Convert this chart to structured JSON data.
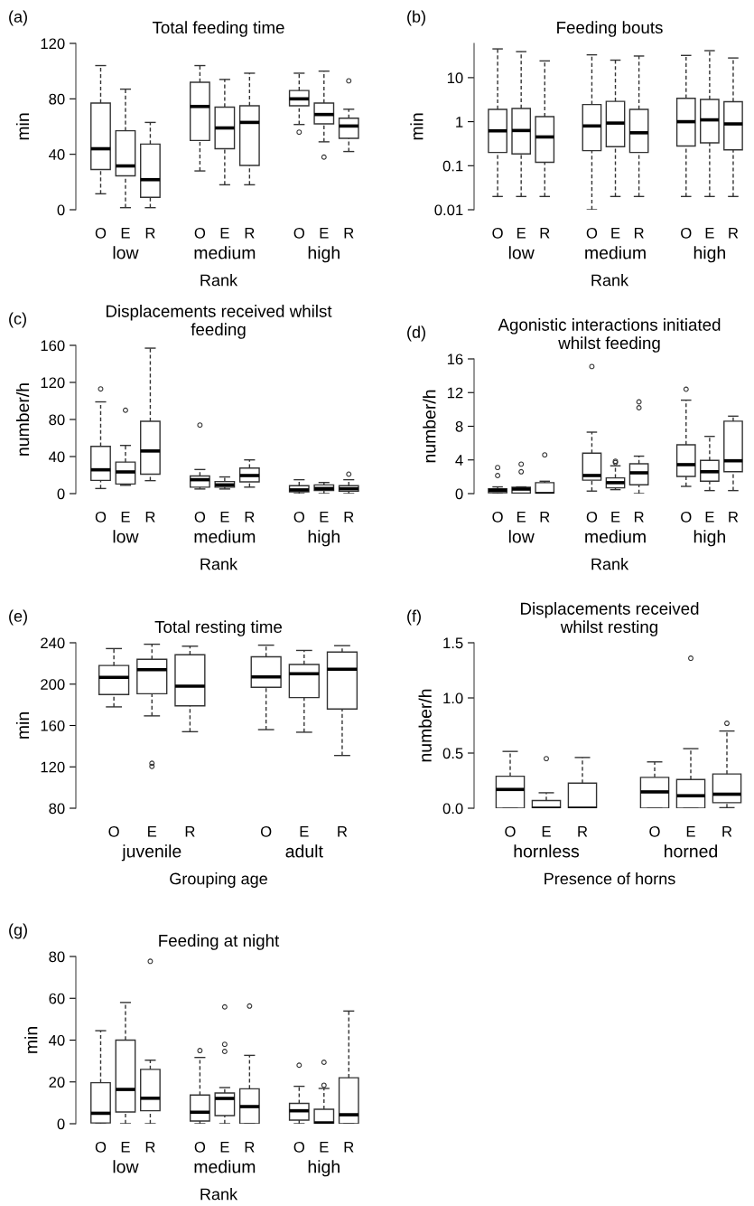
{
  "chart_data": [
    {
      "type": "box",
      "title": "Total feeding time",
      "xlabel": "Rank",
      "ylabel": "min",
      "annotations": [
        "(a)",
        "low",
        "medium",
        "high"
      ],
      "categories": [
        "O",
        "E",
        "R",
        null,
        "O",
        "E",
        "R",
        null,
        "O",
        "E",
        "R"
      ],
      "ylim": [
        0,
        120
      ],
      "yticks": [
        0,
        40,
        80,
        120
      ],
      "boxes": [
        {
          "low": 11.5,
          "q1": 29,
          "median": 44,
          "q3": 77,
          "high": 104
        },
        {
          "low": 1.5,
          "q1": 24.5,
          "median": 31.6,
          "q3": 57,
          "high": 87
        },
        {
          "low": 1.5,
          "q1": 9,
          "median": 21.7,
          "q3": 47.4,
          "high": 63
        },
        null,
        {
          "low": 28,
          "q1": 50,
          "median": 74.5,
          "q3": 92,
          "high": 104
        },
        {
          "low": 18,
          "q1": 44,
          "median": 59,
          "q3": 74,
          "high": 94
        },
        {
          "low": 18,
          "q1": 32,
          "median": 63,
          "q3": 75,
          "high": 98.5
        },
        null,
        {
          "low": 61.5,
          "q1": 75,
          "median": 80,
          "q3": 86,
          "high": 98.5,
          "outliers": [
            56
          ]
        },
        {
          "low": 49,
          "q1": 62,
          "median": 68.7,
          "q3": 77,
          "high": 100,
          "outliers": [
            38
          ]
        },
        {
          "low": 42,
          "q1": 51.5,
          "median": 60.4,
          "q3": 66,
          "high": 72.5,
          "outliers": [
            93
          ]
        }
      ]
    },
    {
      "type": "box",
      "title": "Feeding bouts",
      "xlabel": "Rank",
      "ylabel": "min",
      "annotations": [
        "(b)",
        "low",
        "medium",
        "high"
      ],
      "log": true,
      "categories": [
        "O",
        "E",
        "R",
        null,
        "O",
        "E",
        "R",
        null,
        "O",
        "E",
        "R"
      ],
      "ylim": [
        0.01,
        60
      ],
      "yticks": [
        0.01,
        0.1,
        1,
        10
      ],
      "boxes": [
        {
          "low": 0.02,
          "q1": 0.2,
          "median": 0.62,
          "q3": 1.9,
          "high": 45
        },
        {
          "low": 0.02,
          "q1": 0.185,
          "median": 0.63,
          "q3": 2.0,
          "high": 39
        },
        {
          "low": 0.02,
          "q1": 0.12,
          "median": 0.45,
          "q3": 1.3,
          "high": 24
        },
        null,
        {
          "low": 0.01,
          "q1": 0.22,
          "median": 0.8,
          "q3": 2.45,
          "high": 33
        },
        {
          "low": 0.02,
          "q1": 0.27,
          "median": 0.93,
          "q3": 2.9,
          "high": 25
        },
        {
          "low": 0.02,
          "q1": 0.2,
          "median": 0.56,
          "q3": 1.9,
          "high": 31
        },
        null,
        {
          "low": 0.02,
          "q1": 0.28,
          "median": 1.0,
          "q3": 3.4,
          "high": 32
        },
        {
          "low": 0.02,
          "q1": 0.33,
          "median": 1.1,
          "q3": 3.2,
          "high": 41
        },
        {
          "low": 0.02,
          "q1": 0.23,
          "median": 0.89,
          "q3": 2.85,
          "high": 28
        }
      ]
    },
    {
      "type": "box",
      "title": "Displacements received whilst\nfeeding",
      "xlabel": "Rank",
      "ylabel": "number/h",
      "annotations": [
        "(c)",
        "low",
        "medium",
        "high"
      ],
      "categories": [
        "O",
        "E",
        "R",
        null,
        "O",
        "E",
        "R",
        null,
        "O",
        "E",
        "R"
      ],
      "ylim": [
        0,
        160
      ],
      "yticks": [
        0,
        40,
        80,
        120,
        160
      ],
      "boxes": [
        {
          "low": 5.5,
          "q1": 14.3,
          "median": 25.7,
          "q3": 51,
          "high": 99,
          "outliers": [
            113
          ]
        },
        {
          "low": 9,
          "q1": 10.4,
          "median": 23.4,
          "q3": 34,
          "high": 52,
          "outliers": [
            90
          ]
        },
        {
          "low": 14,
          "q1": 21,
          "median": 46,
          "q3": 78,
          "high": 157
        },
        null,
        {
          "low": 5,
          "q1": 7,
          "median": 15,
          "q3": 19,
          "high": 26,
          "outliers": [
            74
          ]
        },
        {
          "low": 5,
          "q1": 7,
          "median": 9.4,
          "q3": 13,
          "high": 18
        },
        {
          "low": 7,
          "q1": 12.7,
          "median": 19.5,
          "q3": 27.6,
          "high": 36.4
        },
        null,
        {
          "low": 0,
          "q1": 2,
          "median": 4,
          "q3": 8.5,
          "high": 15
        },
        {
          "low": 0,
          "q1": 3.3,
          "median": 5.5,
          "q3": 9.4,
          "high": 12
        },
        {
          "low": 0,
          "q1": 2.6,
          "median": 5.2,
          "q3": 8.5,
          "high": 15,
          "outliers": [
            21
          ]
        }
      ]
    },
    {
      "type": "box",
      "title": "Agonistic interactions initiated\nwhilst feeding",
      "xlabel": "Rank",
      "ylabel": "number/h",
      "annotations": [
        "(d)",
        "low",
        "medium",
        "high"
      ],
      "categories": [
        "O",
        "E",
        "R",
        null,
        "O",
        "E",
        "R",
        null,
        "O",
        "E",
        "R"
      ],
      "ylim": [
        0,
        16
      ],
      "yticks": [
        0,
        4,
        8,
        12,
        16
      ],
      "boxes": [
        {
          "low": 0,
          "q1": 0.1,
          "median": 0.4,
          "q3": 0.57,
          "high": 0.8,
          "outliers": [
            2.15,
            3.1
          ]
        },
        {
          "low": 0,
          "q1": 0.07,
          "median": 0.54,
          "q3": 0.75,
          "high": 0.8,
          "outliers": [
            2.6,
            3.5
          ]
        },
        {
          "low": 0,
          "q1": 0,
          "median": 0,
          "q3": 1.3,
          "high": 1.47,
          "outliers": [
            4.6
          ]
        },
        null,
        {
          "low": 0.3,
          "q1": 1.6,
          "median": 2.15,
          "q3": 4.8,
          "high": 7.3,
          "outliers": [
            15.1
          ]
        },
        {
          "low": 0.47,
          "q1": 0.68,
          "median": 1.3,
          "q3": 1.86,
          "high": 3.3,
          "outliers": [
            3.7,
            3.85
          ]
        },
        {
          "low": 0,
          "q1": 1.04,
          "median": 2.47,
          "q3": 3.55,
          "high": 4.45,
          "outliers": [
            10.2,
            10.9
          ]
        },
        null,
        {
          "low": 0.86,
          "q1": 2.04,
          "median": 3.44,
          "q3": 5.8,
          "high": 11.1,
          "outliers": [
            12.4
          ]
        },
        {
          "low": 0.36,
          "q1": 1.47,
          "median": 2.6,
          "q3": 3.94,
          "high": 6.8
        },
        {
          "low": 0.36,
          "q1": 2.6,
          "median": 3.9,
          "q3": 8.6,
          "high": 9.2
        }
      ]
    },
    {
      "type": "box",
      "title": "Total resting time",
      "xlabel": "Grouping age",
      "ylabel": "min",
      "annotations": [
        "(e)",
        "juvenile",
        "adult"
      ],
      "categories": [
        "O",
        "E",
        "R",
        null,
        "O",
        "E",
        "R"
      ],
      "ylim": [
        80,
        240
      ],
      "yticks": [
        80,
        120,
        160,
        200,
        240
      ],
      "boxes": [
        {
          "low": 178,
          "q1": 190,
          "median": 206.5,
          "q3": 218,
          "high": 234.4
        },
        {
          "low": 169.3,
          "q1": 190.7,
          "median": 214,
          "q3": 224,
          "high": 238.6,
          "outliers": [
            120.5,
            123.5
          ]
        },
        {
          "low": 154,
          "q1": 179,
          "median": 198,
          "q3": 228.4,
          "high": 236.7
        },
        null,
        {
          "low": 156,
          "q1": 197,
          "median": 207,
          "q3": 226.5,
          "high": 237.7
        },
        {
          "low": 153.5,
          "q1": 187,
          "median": 210,
          "q3": 219,
          "high": 232.6
        },
        {
          "low": 131,
          "q1": 176,
          "median": 214.4,
          "q3": 231,
          "high": 237.2
        }
      ]
    },
    {
      "type": "box",
      "title": "Displacements received\nwhilst resting",
      "xlabel": "Presence of horns",
      "ylabel": "number/h",
      "annotations": [
        "(f)",
        "hornless",
        "horned"
      ],
      "categories": [
        "O",
        "E",
        "R",
        null,
        "O",
        "E",
        "R"
      ],
      "ylim": [
        0,
        1.5
      ],
      "yticks": [
        {
          "value": 0,
          "label": "0.0"
        },
        {
          "value": 0.5,
          "label": "0.5"
        },
        {
          "value": 1,
          "label": "1.0"
        },
        {
          "value": 1.5,
          "label": "1.5"
        }
      ],
      "boxes": [
        {
          "low": 0,
          "q1": 0,
          "median": 0.17,
          "q3": 0.29,
          "high": 0.515
        },
        {
          "low": 0,
          "q1": 0,
          "median": 0,
          "q3": 0.07,
          "high": 0.14,
          "outliers": [
            0.45
          ]
        },
        {
          "low": 0,
          "q1": 0,
          "median": 0,
          "q3": 0.227,
          "high": 0.46
        },
        null,
        {
          "low": 0,
          "q1": 0,
          "median": 0.148,
          "q3": 0.28,
          "high": 0.42
        },
        {
          "low": 0,
          "q1": 0,
          "median": 0.113,
          "q3": 0.26,
          "high": 0.54,
          "outliers": [
            1.36
          ]
        },
        {
          "low": 0.005,
          "q1": 0.05,
          "median": 0.127,
          "q3": 0.31,
          "high": 0.7,
          "outliers": [
            0.77
          ]
        }
      ]
    },
    {
      "type": "box",
      "title": "Feeding at night",
      "xlabel": "Rank",
      "ylabel": "min",
      "annotations": [
        "(g)",
        "low",
        "medium",
        "high"
      ],
      "categories": [
        "O",
        "E",
        "R",
        null,
        "O",
        "E",
        "R",
        null,
        "O",
        "E",
        "R"
      ],
      "ylim": [
        0,
        80
      ],
      "yticks": [
        0,
        20,
        40,
        60,
        80
      ],
      "boxes": [
        {
          "low": 0,
          "q1": 0.4,
          "median": 5,
          "q3": 19.6,
          "high": 44.5
        },
        {
          "low": 0,
          "q1": 5.6,
          "median": 16.4,
          "q3": 40,
          "high": 58
        },
        {
          "low": 0,
          "q1": 6.2,
          "median": 12.2,
          "q3": 26,
          "high": 30.4,
          "outliers": [
            77.7
          ]
        },
        null,
        {
          "low": 0,
          "q1": 1.3,
          "median": 5.5,
          "q3": 13.7,
          "high": 31.7,
          "outliers": [
            35
          ]
        },
        {
          "low": 0,
          "q1": 3.9,
          "median": 12.1,
          "q3": 14.7,
          "high": 17.3,
          "outliers": [
            34.6,
            38,
            55.9
          ]
        },
        {
          "low": 0,
          "q1": 0,
          "median": 8.2,
          "q3": 16.7,
          "high": 32.7,
          "outliers": [
            56.3
          ]
        },
        null,
        {
          "low": 0,
          "q1": 1.7,
          "median": 6.2,
          "q3": 9.7,
          "high": 17.9,
          "outliers": [
            28
          ]
        },
        {
          "low": 0,
          "q1": 0,
          "median": 0.4,
          "q3": 6.9,
          "high": 16.9,
          "outliers": [
            18.4,
            29.4
          ]
        },
        {
          "low": 0,
          "q1": 0,
          "median": 4.3,
          "q3": 22,
          "high": 53.9
        }
      ]
    }
  ]
}
